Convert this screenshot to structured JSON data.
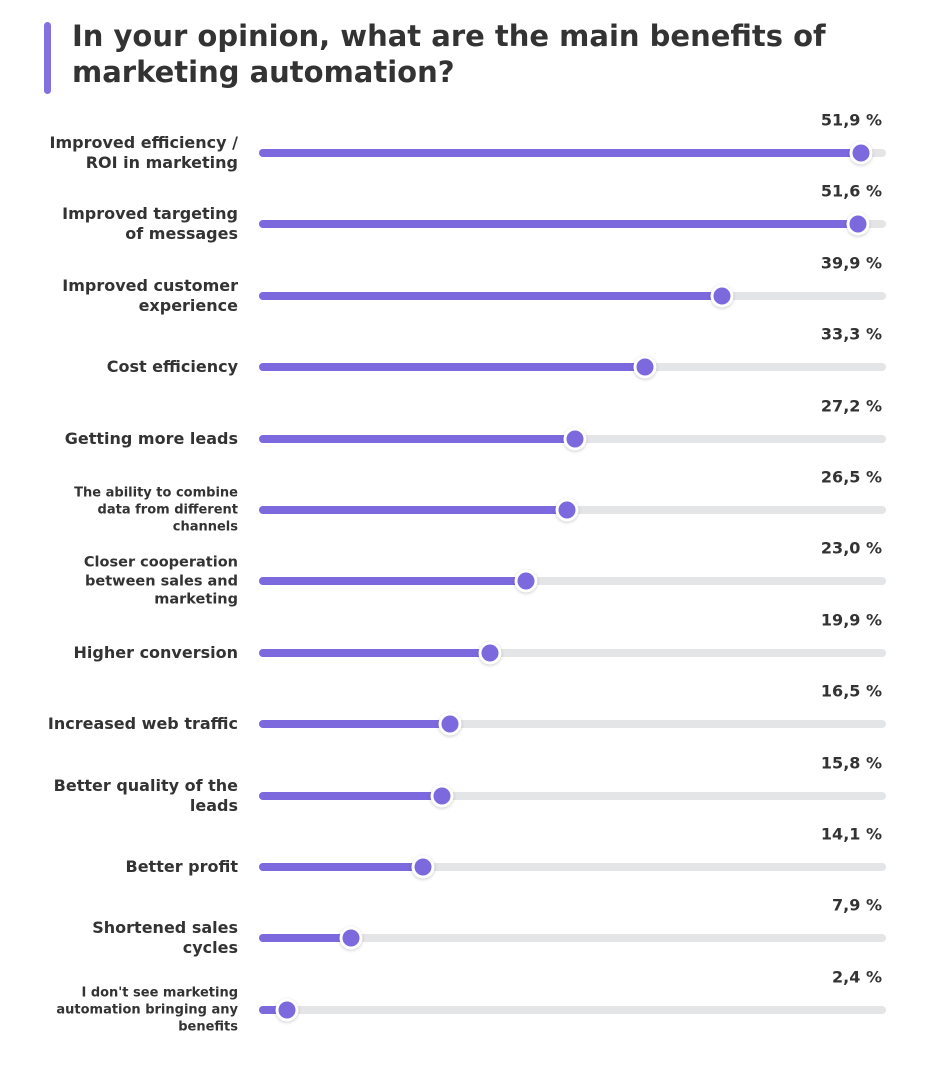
{
  "chart_data": {
    "type": "slider-bar",
    "title": "In your opinion, what are the main benefits of marketing automation?",
    "categories": [
      "Improved efficiency / ROI in marketing",
      "Improved targeting of messages",
      "Improved customer experience",
      "Cost efficiency",
      "Getting more leads",
      "The ability to combine data from different channels",
      "Closer cooperation between sales and marketing",
      "Higher conversion",
      "Increased web traffic",
      "Better quality of the leads",
      "Better profit",
      "Shortened sales cycles",
      "I don't see marketing automation bringing any benefits"
    ],
    "values": [
      51.9,
      51.6,
      39.9,
      33.3,
      27.2,
      26.5,
      23.0,
      19.9,
      16.5,
      15.8,
      14.1,
      7.9,
      2.4
    ],
    "value_labels": [
      "51,9 %",
      "51,6 %",
      "39,9 %",
      "33,3 %",
      "27,2 %",
      "26,5 %",
      "23,0 %",
      "19,9 %",
      "16,5 %",
      "15,8 %",
      "14,1 %",
      "7,9 %",
      "2,4 %"
    ],
    "color": "#7c69de",
    "xlim": [
      0,
      53
    ]
  }
}
